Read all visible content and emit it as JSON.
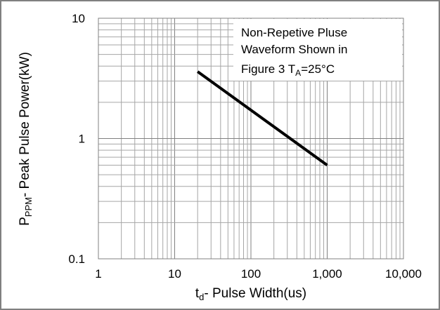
{
  "chart_data": {
    "type": "line",
    "x_scale": "log",
    "y_scale": "log",
    "xlim": [
      1,
      10000
    ],
    "ylim": [
      0.1,
      10
    ],
    "grid": true,
    "x_ticks": [
      {
        "value": 1,
        "label": "1"
      },
      {
        "value": 10,
        "label": "10"
      },
      {
        "value": 100,
        "label": "100"
      },
      {
        "value": 1000,
        "label": "1,000"
      },
      {
        "value": 10000,
        "label": "10,000"
      }
    ],
    "y_ticks": [
      {
        "value": 0.1,
        "label": "0.1"
      },
      {
        "value": 1,
        "label": "1"
      },
      {
        "value": 10,
        "label": "10"
      }
    ],
    "xlabel": {
      "main": "t",
      "sub": "d",
      "rest": "- Pulse Width(us)"
    },
    "ylabel": {
      "main": "P",
      "sub": "PPM",
      "rest": "- Peak Pulse Power(kW)"
    },
    "series": [
      {
        "x": [
          20,
          1000
        ],
        "y": [
          3.6,
          0.6
        ]
      }
    ],
    "annotation": {
      "line1": "Non-Repetive Pluse",
      "line2": "Waveform Shown in",
      "line3_main": "Figure 3 T",
      "line3_sub": "A",
      "line3_rest": "=25°C"
    },
    "colors": {
      "line": "#000000",
      "grid": "#a6a6a6",
      "major_grid": "#808080",
      "border": "#808080"
    }
  }
}
